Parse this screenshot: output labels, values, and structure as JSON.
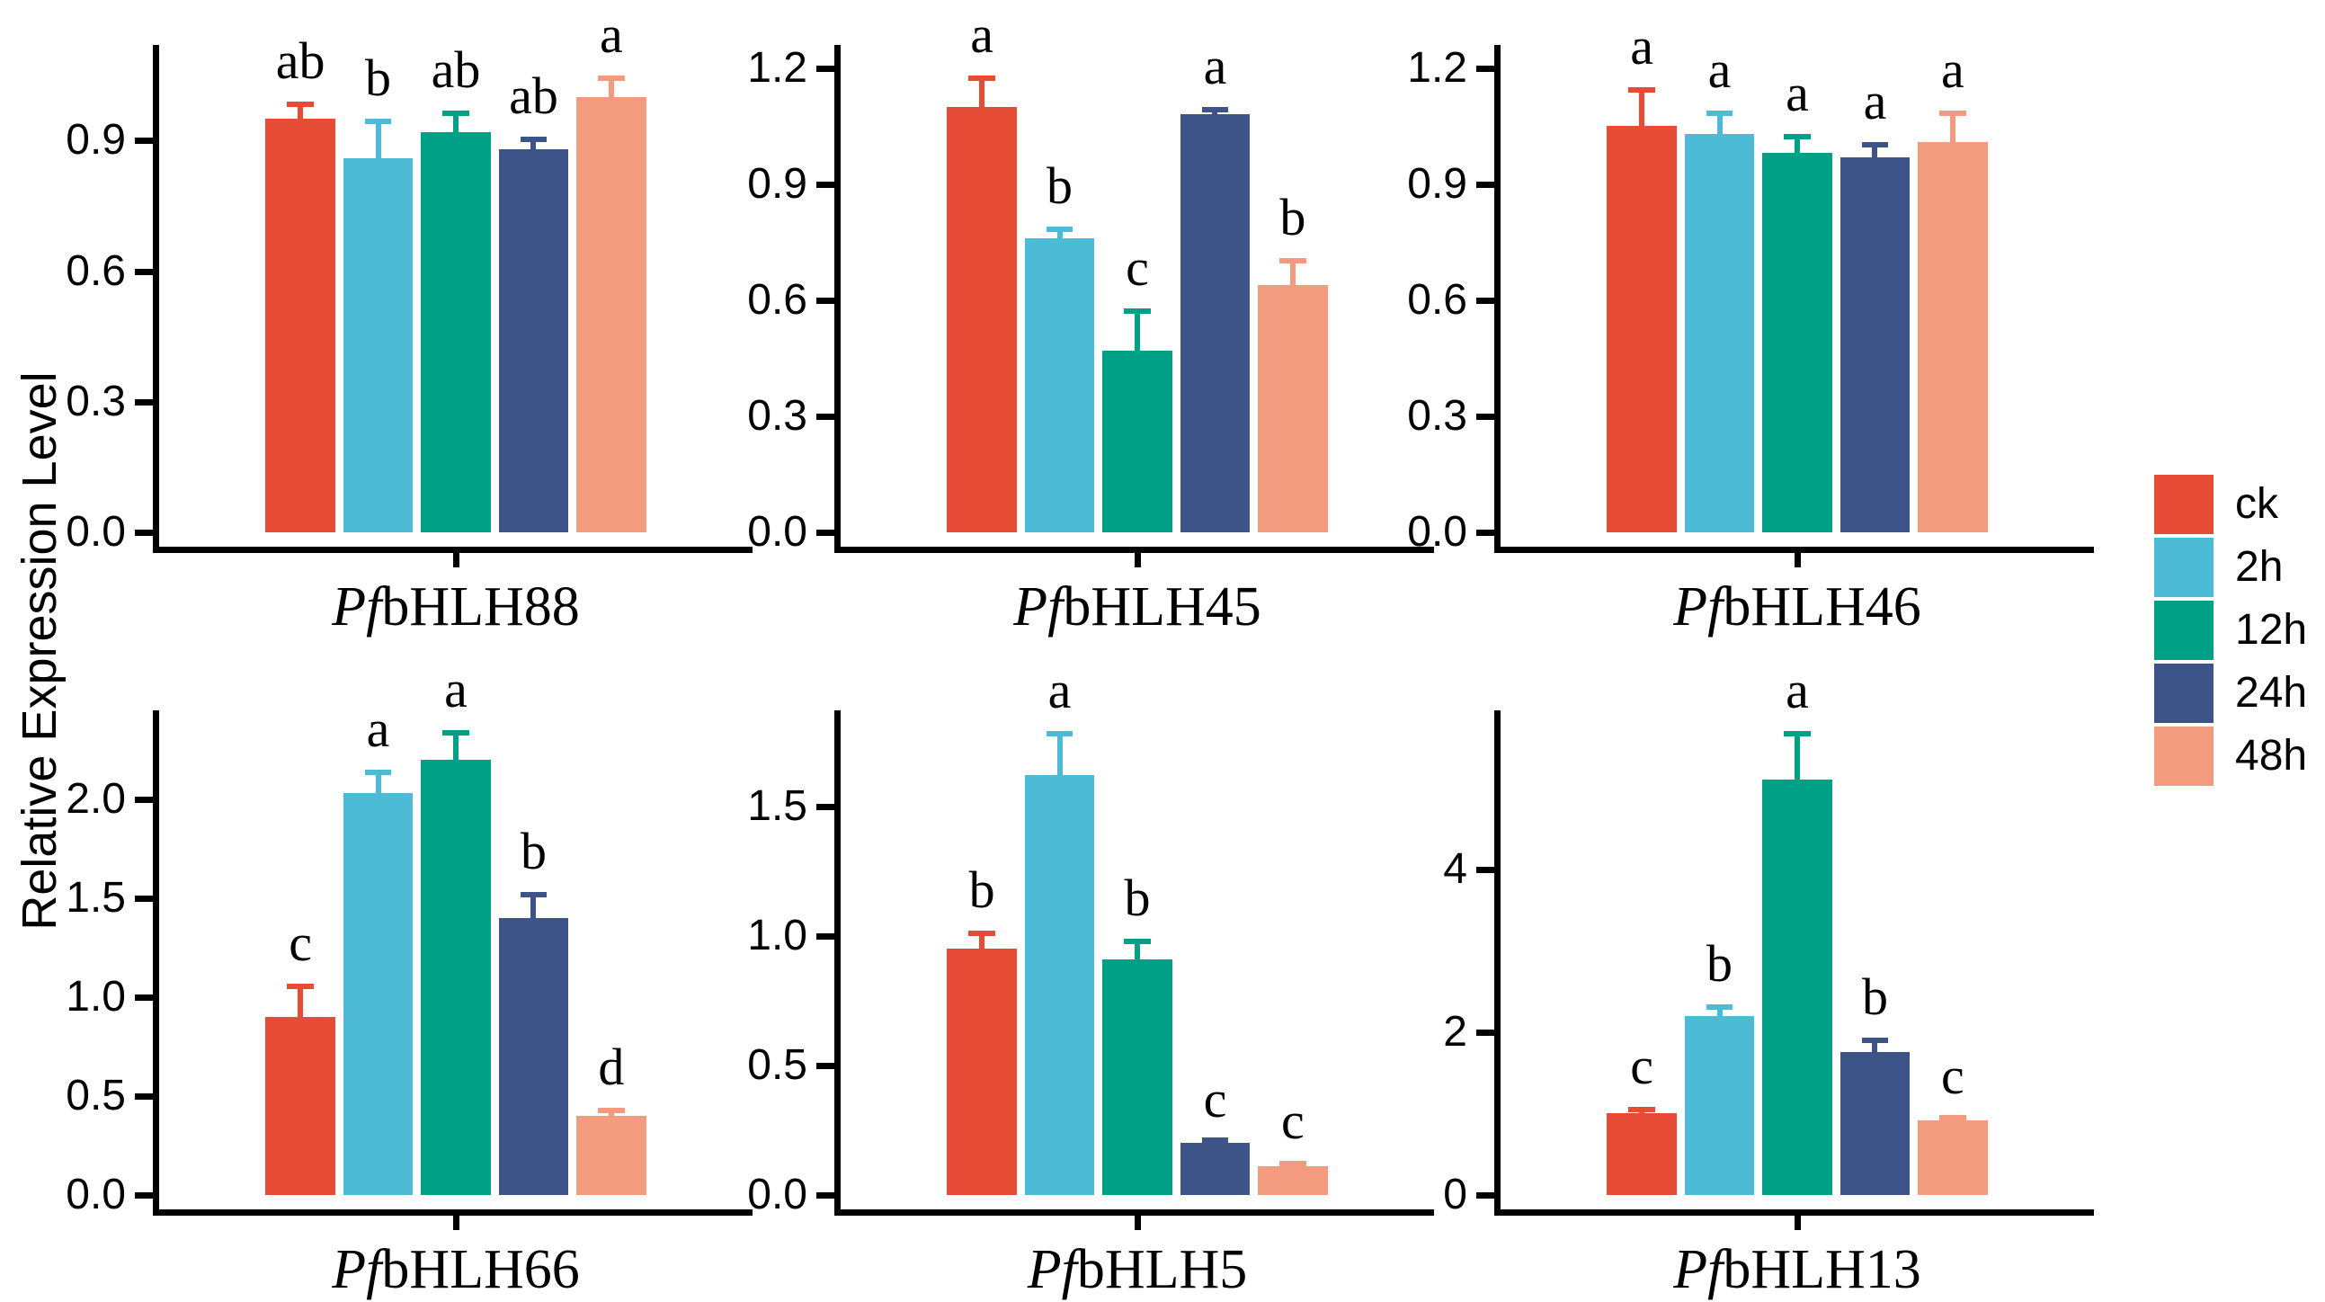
{
  "figure": {
    "ylabel": "Relative Expression Level",
    "background_color": "#ffffff",
    "axis_color": "#000000",
    "letter_color": "#000000"
  },
  "legend": {
    "position": "right",
    "items": [
      {
        "label": "ck",
        "color": "#E64B35"
      },
      {
        "label": "2h",
        "color": "#4DBBD5"
      },
      {
        "label": "12h",
        "color": "#00A087"
      },
      {
        "label": "24h",
        "color": "#3C5488"
      },
      {
        "label": "48h",
        "color": "#F39B7F"
      }
    ]
  },
  "chart_data": [
    {
      "type": "bar",
      "gene_prefix_italic": "Pf",
      "gene_name": "bHLH88",
      "xlabel_full": "PfbHLH88",
      "categories": [
        "ck",
        "2h",
        "12h",
        "24h",
        "48h"
      ],
      "values": [
        0.95,
        0.86,
        0.92,
        0.88,
        1.0
      ],
      "errors": [
        0.04,
        0.09,
        0.05,
        0.03,
        0.05
      ],
      "sig_letters": [
        "ab",
        "b",
        "ab",
        "ab",
        "a"
      ],
      "yticks": [
        "0.0",
        "0.3",
        "0.6",
        "0.9"
      ],
      "ylim": [
        0,
        1.12
      ],
      "ylabel": "",
      "grid": false
    },
    {
      "type": "bar",
      "gene_prefix_italic": "Pf",
      "gene_name": "bHLH45",
      "xlabel_full": "PfbHLH45",
      "categories": [
        "ck",
        "2h",
        "12h",
        "24h",
        "48h"
      ],
      "values": [
        1.1,
        0.76,
        0.47,
        1.08,
        0.64
      ],
      "errors": [
        0.08,
        0.03,
        0.11,
        0.02,
        0.07
      ],
      "sig_letters": [
        "a",
        "b",
        "c",
        "a",
        "b"
      ],
      "yticks": [
        "0.0",
        "0.3",
        "0.6",
        "0.9",
        "1.2"
      ],
      "ylim": [
        0,
        1.26
      ],
      "ylabel": "",
      "grid": false
    },
    {
      "type": "bar",
      "gene_prefix_italic": "Pf",
      "gene_name": "bHLH46",
      "xlabel_full": "PfbHLH46",
      "categories": [
        "ck",
        "2h",
        "12h",
        "24h",
        "48h"
      ],
      "values": [
        1.05,
        1.03,
        0.98,
        0.97,
        1.01
      ],
      "errors": [
        0.1,
        0.06,
        0.05,
        0.04,
        0.08
      ],
      "sig_letters": [
        "a",
        "a",
        "a",
        "a",
        "a"
      ],
      "yticks": [
        "0.0",
        "0.3",
        "0.6",
        "0.9",
        "1.2"
      ],
      "ylim": [
        0,
        1.26
      ],
      "ylabel": "",
      "grid": false
    },
    {
      "type": "bar",
      "gene_prefix_italic": "Pf",
      "gene_name": "bHLH66",
      "xlabel_full": "PfbHLH66",
      "categories": [
        "ck",
        "2h",
        "12h",
        "24h",
        "48h"
      ],
      "values": [
        0.9,
        2.03,
        2.2,
        1.4,
        0.4
      ],
      "errors": [
        0.17,
        0.12,
        0.15,
        0.13,
        0.04
      ],
      "sig_letters": [
        "c",
        "a",
        "a",
        "b",
        "d"
      ],
      "yticks": [
        "0.0",
        "0.5",
        "1.0",
        "1.5",
        "2.0"
      ],
      "ylim": [
        0,
        2.45
      ],
      "ylabel": "",
      "grid": false
    },
    {
      "type": "bar",
      "gene_prefix_italic": "Pf",
      "gene_name": "bHLH5",
      "xlabel_full": "PfbHLH5",
      "categories": [
        "ck",
        "2h",
        "12h",
        "24h",
        "48h"
      ],
      "values": [
        0.95,
        1.62,
        0.91,
        0.2,
        0.11
      ],
      "errors": [
        0.07,
        0.17,
        0.08,
        0.01,
        0.02
      ],
      "sig_letters": [
        "b",
        "a",
        "b",
        "c",
        "c"
      ],
      "yticks": [
        "0.0",
        "0.5",
        "1.0",
        "1.5"
      ],
      "ylim": [
        0,
        1.87
      ],
      "ylabel": "",
      "grid": false
    },
    {
      "type": "bar",
      "gene_prefix_italic": "Pf",
      "gene_name": "bHLH13",
      "xlabel_full": "PfbHLH13",
      "categories": [
        "ck",
        "2h",
        "12h",
        "24h",
        "48h"
      ],
      "values": [
        1.0,
        2.2,
        5.1,
        1.75,
        0.92
      ],
      "errors": [
        0.08,
        0.14,
        0.6,
        0.18,
        0.04
      ],
      "sig_letters": [
        "c",
        "b",
        "a",
        "b",
        "c"
      ],
      "yticks": [
        "0",
        "2",
        "4"
      ],
      "ylim": [
        0,
        5.95
      ],
      "ylabel": "",
      "grid": false
    }
  ]
}
